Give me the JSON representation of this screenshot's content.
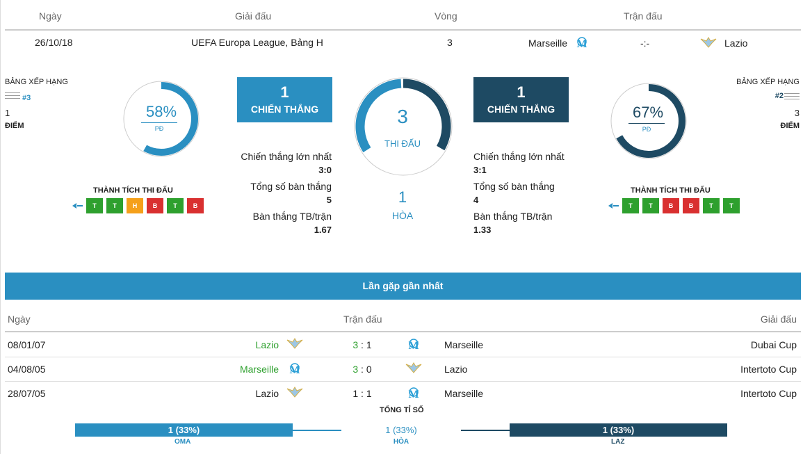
{
  "header": {
    "col_date": "Ngày",
    "col_league": "Giải đấu",
    "col_round": "Vòng",
    "col_match": "Trận đấu"
  },
  "match": {
    "date": "26/10/18",
    "league": "UEFA Europa League, Bảng H",
    "round": "3",
    "home": "Marseille",
    "score": "-:-",
    "away": "Lazio",
    "home_logo": "marseille-logo-icon",
    "away_logo": "lazio-logo-icon"
  },
  "home_side": {
    "rank_label": "BẢNG XẾP HẠNG",
    "rank": "#3",
    "points": "1",
    "points_label": "ĐIỂM",
    "win_pct": "58%",
    "win_pct_value": 58,
    "pd_label": "PĐ",
    "form_title": "THÀNH TÍCH THI ĐẤU",
    "form": [
      "T",
      "T",
      "H",
      "B",
      "T",
      "B"
    ]
  },
  "away_side": {
    "rank_label": "BẢNG XẾP HẠNG",
    "rank": "#2",
    "points": "3",
    "points_label": "ĐIỂM",
    "win_pct": "67%",
    "win_pct_value": 67,
    "pd_label": "PĐ",
    "form_title": "THÀNH TÍCH THI ĐẤU",
    "form": [
      "T",
      "T",
      "B",
      "B",
      "T",
      "T"
    ]
  },
  "h2h": {
    "home_wins": "1",
    "away_wins": "1",
    "win_label": "CHIẾN THẮNG",
    "matches": "3",
    "matches_label": "THI ĐẤU",
    "draws": "1",
    "draws_label": "HÒA",
    "home_stats": {
      "biggest_win_label": "Chiến thắng lớn nhất",
      "biggest_win": "3:0",
      "goals_label": "Tổng số bàn thắng",
      "goals": "5",
      "avg_label": "Bàn thắng TB/trận",
      "avg": "1.67"
    },
    "away_stats": {
      "biggest_win_label": "Chiến thắng lớn nhất",
      "biggest_win": "3:1",
      "goals_label": "Tổng số bàn thắng",
      "goals": "4",
      "avg_label": "Bàn thắng TB/trận",
      "avg": "1.33"
    }
  },
  "recent": {
    "title": "Lần gặp gần nhất",
    "col_date": "Ngày",
    "col_match": "Trận đấu",
    "col_league": "Giải đấu",
    "rows": [
      {
        "date": "08/01/07",
        "home": "Lazio",
        "score_home": "3",
        "score_sep": ":",
        "score_away": "1",
        "away": "Marseille",
        "league": "Dubai Cup"
      },
      {
        "date": "04/08/05",
        "home": "Marseille",
        "score_home": "3",
        "score_sep": ":",
        "score_away": "0",
        "away": "Lazio",
        "league": "Intertoto Cup"
      },
      {
        "date": "28/07/05",
        "home": "Lazio",
        "score_home": "1",
        "score_sep": ":",
        "score_away": "1",
        "away": "Marseille",
        "league": "Intertoto Cup"
      }
    ],
    "total_label": "TỔNG TỈ SỐ",
    "home_total": "1 (33%)",
    "home_code": "OMA",
    "draw_total": "1 (33%)",
    "draw_label": "HÒA",
    "away_total": "1 (33%)",
    "away_code": "LAZ"
  },
  "colors": {
    "accent": "#2a8fc1",
    "dark": "#1e4a63",
    "win": "#2ea02e",
    "draw": "#f5a01a",
    "loss": "#d93030"
  }
}
